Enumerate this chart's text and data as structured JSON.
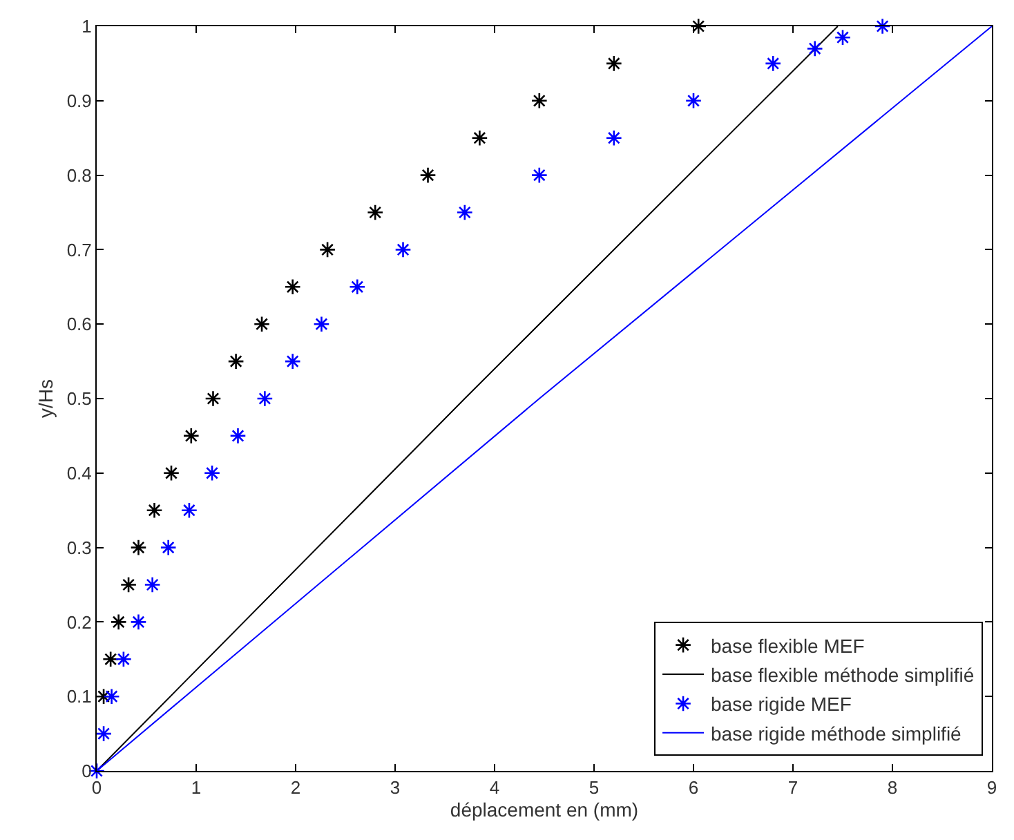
{
  "chart_data": {
    "type": "line",
    "xlabel": "déplacement en (mm)",
    "ylabel": "y/Hs",
    "xlim": [
      0,
      9
    ],
    "xticks": [
      0,
      1,
      2,
      3,
      4,
      5,
      6,
      7,
      8,
      9
    ],
    "ylim": [
      0,
      1
    ],
    "yticks": [
      0,
      0.1,
      0.2,
      0.3,
      0.4,
      0.5,
      0.6,
      0.7,
      0.8,
      0.9,
      1
    ],
    "legend": "bottom right",
    "series": [
      {
        "name": "base flexible MEF",
        "type": "scatter",
        "marker": "cross",
        "color": "#000000",
        "x": [
          0.07,
          0.14,
          0.22,
          0.32,
          0.42,
          0.58,
          0.75,
          0.95,
          1.17,
          1.4,
          1.66,
          1.97,
          2.32,
          2.8,
          3.33,
          3.85,
          4.45,
          5.2,
          6.05
        ],
        "values": [
          0.1,
          0.15,
          0.2,
          0.25,
          0.3,
          0.35,
          0.4,
          0.45,
          0.5,
          0.55,
          0.6,
          0.65,
          0.7,
          0.75,
          0.8,
          0.85,
          0.9,
          0.95,
          1
        ]
      },
      {
        "name": "base flexible méthode simplifié",
        "line_style": "solid",
        "color": "#000000",
        "x": [
          0,
          3.7,
          7.45
        ],
        "values": [
          0,
          0.5,
          1
        ]
      },
      {
        "name": "base rigide MEF",
        "type": "scatter",
        "marker": "cross",
        "color": "#0000ff",
        "x": [
          0,
          0.07,
          0.15,
          0.27,
          0.42,
          0.56,
          0.72,
          0.93,
          1.16,
          1.42,
          1.69,
          1.97,
          2.26,
          2.62,
          3.08,
          3.7,
          4.45,
          5.2,
          6.0,
          6.8,
          7.22,
          7.5,
          7.9
        ],
        "values": [
          0,
          0.05,
          0.1,
          0.15,
          0.2,
          0.25,
          0.3,
          0.35,
          0.4,
          0.45,
          0.5,
          0.55,
          0.6,
          0.65,
          0.7,
          0.75,
          0.8,
          0.85,
          0.9,
          0.95,
          0.97,
          0.985,
          1
        ]
      },
      {
        "name": "base rigide méthode simplifié",
        "line_style": "solid",
        "color": "#0000ff",
        "x": [
          0,
          4.45,
          9
        ],
        "values": [
          0,
          0.5,
          1
        ]
      }
    ]
  }
}
